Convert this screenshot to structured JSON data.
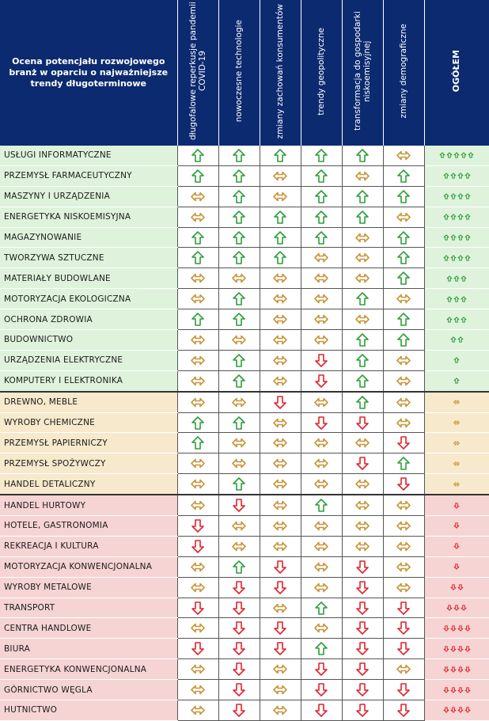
{
  "colors": {
    "header_bg": "#0b2a6f",
    "up": "#2e9e3a",
    "same": "#c8953a",
    "down": "#e0242d",
    "group_green": "#dff3dc",
    "group_yellow": "#f6e9cc",
    "group_red": "#f6d4d4"
  },
  "icons": {
    "up": "arrow-up-icon",
    "same": "arrow-left-right-icon",
    "down": "arrow-down-icon"
  },
  "header": {
    "title": "Ocena potencjału rozwojowego branż w oparciu o najważniejsze trendy długoterminowe",
    "columns": [
      "długofalowe reperkusje pandemii COVID-19",
      "nowoczesne technologie",
      "zmiany zachowań konsumentów",
      "trendy geopolityczne",
      "transformacja do gospodarki niskoemisyjnej",
      "zmiany demograficzne"
    ],
    "overall": "OGÓŁEM"
  },
  "chart_data": {
    "type": "table",
    "title": "Ocena potencjału rozwojowego branż w oparciu o najważniejsze trendy długoterminowe",
    "columns": [
      "długofalowe reperkusje pandemii COVID-19",
      "nowoczesne technologie",
      "zmiany zachowań konsumentów",
      "trendy geopolityczne",
      "transformacja do gospodarki niskoemisyjnej",
      "zmiany demograficzne",
      "OGÓŁEM"
    ],
    "value_legend": {
      "up": "wzrost",
      "same": "bez zmian",
      "down": "spadek"
    },
    "rows": [
      {
        "name": "USŁUGI INFORMATYCZNE",
        "group": "green",
        "values": [
          "up",
          "up",
          "up",
          "up",
          "up",
          "same"
        ],
        "overall": {
          "dir": "up",
          "count": 5
        }
      },
      {
        "name": "PRZEMYSŁ FARMACEUTYCZNY",
        "group": "green",
        "values": [
          "up",
          "up",
          "same",
          "up",
          "same",
          "up"
        ],
        "overall": {
          "dir": "up",
          "count": 4
        }
      },
      {
        "name": "MASZYNY I URZĄDZENIA",
        "group": "green",
        "values": [
          "same",
          "up",
          "same",
          "up",
          "up",
          "up"
        ],
        "overall": {
          "dir": "up",
          "count": 4
        }
      },
      {
        "name": "ENERGETYKA NISKOEMISYJNA",
        "group": "green",
        "values": [
          "same",
          "up",
          "up",
          "up",
          "up",
          "same"
        ],
        "overall": {
          "dir": "up",
          "count": 4
        }
      },
      {
        "name": "MAGAZYNOWANIE",
        "group": "green",
        "values": [
          "up",
          "up",
          "up",
          "up",
          "same",
          "up"
        ],
        "overall": {
          "dir": "up",
          "count": 4
        }
      },
      {
        "name": "TWORZYWA SZTUCZNE",
        "group": "green",
        "values": [
          "up",
          "up",
          "up",
          "same",
          "same",
          "up"
        ],
        "overall": {
          "dir": "up",
          "count": 4
        }
      },
      {
        "name": "MATERIAŁY BUDOWLANE",
        "group": "green",
        "values": [
          "same",
          "same",
          "same",
          "same",
          "same",
          "up"
        ],
        "overall": {
          "dir": "up",
          "count": 3
        }
      },
      {
        "name": "MOTORYZACJA EKOLOGICZNA",
        "group": "green",
        "values": [
          "same",
          "up",
          "same",
          "same",
          "up",
          "same"
        ],
        "overall": {
          "dir": "up",
          "count": 3
        }
      },
      {
        "name": "OCHRONA ZDROWIA",
        "group": "green",
        "values": [
          "up",
          "up",
          "same",
          "same",
          "same",
          "up"
        ],
        "overall": {
          "dir": "up",
          "count": 3
        }
      },
      {
        "name": "BUDOWNICTWO",
        "group": "green",
        "values": [
          "same",
          "same",
          "same",
          "same",
          "up",
          "up"
        ],
        "overall": {
          "dir": "up",
          "count": 2
        }
      },
      {
        "name": "URZĄDZENIA ELEKTRYCZNE",
        "group": "green",
        "values": [
          "same",
          "up",
          "same",
          "down",
          "up",
          "same"
        ],
        "overall": {
          "dir": "up",
          "count": 1
        }
      },
      {
        "name": "KOMPUTERY I ELEKTRONIKA",
        "group": "green",
        "values": [
          "same",
          "up",
          "same",
          "down",
          "up",
          "same"
        ],
        "overall": {
          "dir": "up",
          "count": 1
        }
      },
      {
        "name": "DREWNO, MEBLE",
        "group": "yellow",
        "values": [
          "same",
          "same",
          "down",
          "same",
          "up",
          "same"
        ],
        "overall": {
          "dir": "same",
          "count": 1
        }
      },
      {
        "name": "WYROBY CHEMICZNE",
        "group": "yellow",
        "values": [
          "up",
          "up",
          "same",
          "down",
          "down",
          "same"
        ],
        "overall": {
          "dir": "same",
          "count": 1
        }
      },
      {
        "name": "PRZEMYSŁ PAPIERNICZY",
        "group": "yellow",
        "values": [
          "up",
          "same",
          "same",
          "same",
          "same",
          "down"
        ],
        "overall": {
          "dir": "same",
          "count": 1
        }
      },
      {
        "name": "PRZEMYSŁ SPOŻYWCZY",
        "group": "yellow",
        "values": [
          "same",
          "same",
          "same",
          "same",
          "down",
          "up"
        ],
        "overall": {
          "dir": "same",
          "count": 1
        }
      },
      {
        "name": "HANDEL DETALICZNY",
        "group": "yellow",
        "values": [
          "same",
          "up",
          "same",
          "same",
          "same",
          "down"
        ],
        "overall": {
          "dir": "same",
          "count": 1
        }
      },
      {
        "name": "HANDEL HURTOWY",
        "group": "red",
        "values": [
          "same",
          "down",
          "same",
          "up",
          "same",
          "same"
        ],
        "overall": {
          "dir": "down",
          "count": 1
        }
      },
      {
        "name": "HOTELE, GASTRONOMIA",
        "group": "red",
        "values": [
          "down",
          "same",
          "same",
          "same",
          "same",
          "same"
        ],
        "overall": {
          "dir": "down",
          "count": 1
        }
      },
      {
        "name": "REKREACJA I KULTURA",
        "group": "red",
        "values": [
          "down",
          "same",
          "same",
          "same",
          "same",
          "same"
        ],
        "overall": {
          "dir": "down",
          "count": 1
        }
      },
      {
        "name": "MOTORYZACJA KONWENCJONALNA",
        "group": "red",
        "values": [
          "same",
          "up",
          "down",
          "same",
          "down",
          "same"
        ],
        "overall": {
          "dir": "down",
          "count": 1
        }
      },
      {
        "name": "WYROBY METALOWE",
        "group": "red",
        "values": [
          "same",
          "down",
          "down",
          "same",
          "down",
          "same"
        ],
        "overall": {
          "dir": "down",
          "count": 2
        }
      },
      {
        "name": "TRANSPORT",
        "group": "red",
        "values": [
          "down",
          "down",
          "same",
          "up",
          "down",
          "down"
        ],
        "overall": {
          "dir": "down",
          "count": 3
        }
      },
      {
        "name": "CENTRA HANDLOWE",
        "group": "red",
        "values": [
          "same",
          "down",
          "down",
          "same",
          "down",
          "down"
        ],
        "overall": {
          "dir": "down",
          "count": 4
        }
      },
      {
        "name": "BIURA",
        "group": "red",
        "values": [
          "down",
          "down",
          "down",
          "up",
          "down",
          "down"
        ],
        "overall": {
          "dir": "down",
          "count": 4
        }
      },
      {
        "name": "ENERGETYKA KONWENCJONALNA",
        "group": "red",
        "values": [
          "same",
          "down",
          "same",
          "down",
          "down",
          "same"
        ],
        "overall": {
          "dir": "down",
          "count": 4
        }
      },
      {
        "name": "GÓRNICTWO WĘGLA",
        "group": "red",
        "values": [
          "same",
          "down",
          "same",
          "down",
          "down",
          "down"
        ],
        "overall": {
          "dir": "down",
          "count": 4
        }
      },
      {
        "name": "HUTNICTWO",
        "group": "red",
        "values": [
          "same",
          "down",
          "same",
          "down",
          "down",
          "down"
        ],
        "overall": {
          "dir": "down",
          "count": 4
        }
      }
    ]
  }
}
